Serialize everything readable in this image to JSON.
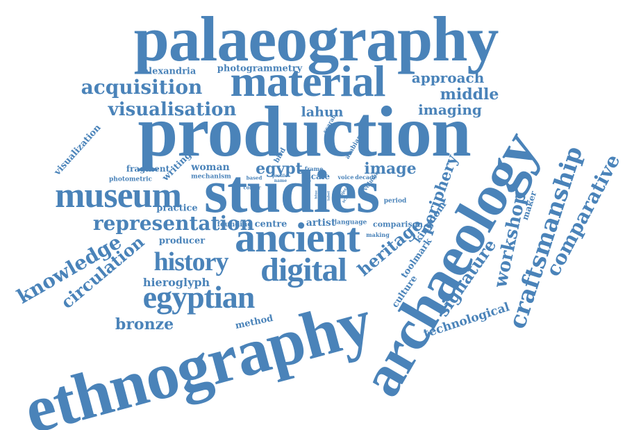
{
  "colors": {
    "word": "#4a83b9",
    "background": "#ffffff"
  },
  "words": [
    "palaeography",
    "production",
    "studies",
    "material",
    "ethnography",
    "archaeology",
    "ancient",
    "museum",
    "digital",
    "egyptian",
    "history",
    "craftsmanship",
    "comparative",
    "knowledge",
    "circulation",
    "workshop",
    "signature",
    "heritage",
    "periphery",
    "technological",
    "acquisition",
    "visualisation",
    "lahun",
    "imaging",
    "approach",
    "middle",
    "bronze",
    "representation",
    "hieroglyph",
    "image",
    "egypt",
    "visualization",
    "alexandria",
    "photogrammetry",
    "fragment",
    "writing",
    "woman",
    "mechanism",
    "practice",
    "producer",
    "founding",
    "centre",
    "artist",
    "kingdom",
    "maker",
    "toolmark",
    "culture",
    "method",
    "comparison",
    "photometric",
    "frame",
    "bird",
    "scarab",
    "arabian",
    "based",
    "colour",
    "profile",
    "name",
    "voice",
    "decade",
    "volume",
    "object",
    "script",
    "period",
    "language",
    "making",
    "analysis",
    "label",
    "blue",
    "focus",
    "scale"
  ]
}
